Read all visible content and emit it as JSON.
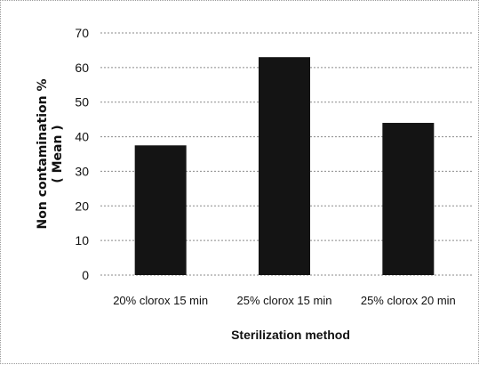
{
  "chart_data": {
    "type": "bar",
    "categories": [
      "20% clorox 15 min",
      "25% clorox 15 min",
      "25% clorox 20 min"
    ],
    "values": [
      37.5,
      63,
      44
    ],
    "xlabel": "Sterilization method",
    "ylabel": [
      "Non contamination %",
      "( Mean )"
    ],
    "ylim": [
      0,
      70
    ],
    "yticks": [
      "0",
      "10",
      "20",
      "30",
      "40",
      "50",
      "60",
      "70"
    ],
    "grid": true,
    "legend": "none",
    "colors": {
      "bar": "#141414",
      "grid": "#8a8a8a"
    }
  }
}
